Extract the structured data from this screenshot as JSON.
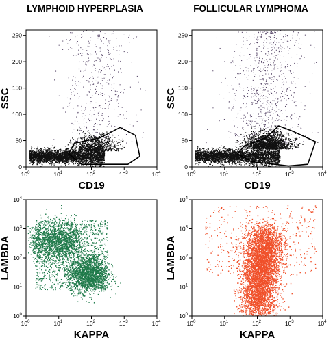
{
  "titles": {
    "left": "LYMPHOID HYPERPLASIA",
    "right": "FOLLICULAR LYMPHOMA"
  },
  "colors": {
    "top_dots": "#111111",
    "top_sparse": "#554466",
    "green_dots": "#1f7a4a",
    "red_dots": "#f0502a"
  },
  "chart_data": [
    {
      "type": "scatter",
      "panel": "top-left",
      "xlabel": "CD19",
      "ylabel": "SSC",
      "xscale": "log",
      "xlim": [
        1,
        10000
      ],
      "ylim": [
        0,
        260
      ],
      "xticks": [
        "10",
        "10",
        "10",
        "10",
        "10"
      ],
      "xtick_exps": [
        "0",
        "1",
        "2",
        "3",
        "4"
      ],
      "yticks": [
        "0",
        "50",
        "100",
        "150",
        "200",
        "250"
      ],
      "gate": [
        [
          30,
          45
        ],
        [
          180,
          55
        ],
        [
          750,
          75
        ],
        [
          2200,
          60
        ],
        [
          3000,
          20
        ],
        [
          1300,
          5
        ],
        [
          50,
          5
        ],
        [
          20,
          25
        ]
      ]
    },
    {
      "type": "scatter",
      "panel": "top-right",
      "xlabel": "CD19",
      "ylabel": "SSC",
      "xscale": "log",
      "xlim": [
        1,
        10000
      ],
      "ylim": [
        0,
        260
      ],
      "xticks": [
        "10",
        "10",
        "10",
        "10",
        "10"
      ],
      "xtick_exps": [
        "0",
        "1",
        "2",
        "3",
        "4"
      ],
      "yticks": [
        "0",
        "50",
        "100",
        "150",
        "200",
        "250"
      ],
      "gate": [
        [
          40,
          40
        ],
        [
          180,
          55
        ],
        [
          450,
          78
        ],
        [
          1200,
          68
        ],
        [
          6000,
          48
        ],
        [
          3500,
          5
        ],
        [
          900,
          2
        ],
        [
          65,
          10
        ],
        [
          25,
          25
        ]
      ]
    },
    {
      "type": "scatter",
      "panel": "bottom-left",
      "xlabel": "KAPPA",
      "ylabel": "LAMBDA",
      "xscale": "log",
      "yscale": "log",
      "xlim": [
        1,
        10000
      ],
      "ylim": [
        1,
        10000
      ],
      "xticks": [
        "10",
        "10",
        "10",
        "10",
        "10"
      ],
      "xtick_exps": [
        "0",
        "1",
        "2",
        "3",
        "4"
      ],
      "yticks": [
        "10",
        "10",
        "10",
        "10",
        "10"
      ],
      "ytick_exps": [
        "0",
        "1",
        "2",
        "3",
        "4"
      ]
    },
    {
      "type": "scatter",
      "panel": "bottom-right",
      "xlabel": "KAPPA",
      "ylabel": "LAMBDA",
      "xscale": "log",
      "yscale": "log",
      "xlim": [
        1,
        10000
      ],
      "ylim": [
        1,
        10000
      ],
      "xticks": [
        "10",
        "10",
        "10",
        "10",
        "10"
      ],
      "xtick_exps": [
        "0",
        "1",
        "2",
        "3",
        "4"
      ],
      "yticks": [
        "10",
        "10",
        "10",
        "10",
        "10"
      ],
      "ytick_exps": [
        "0",
        "1",
        "2",
        "3",
        "4"
      ]
    }
  ]
}
